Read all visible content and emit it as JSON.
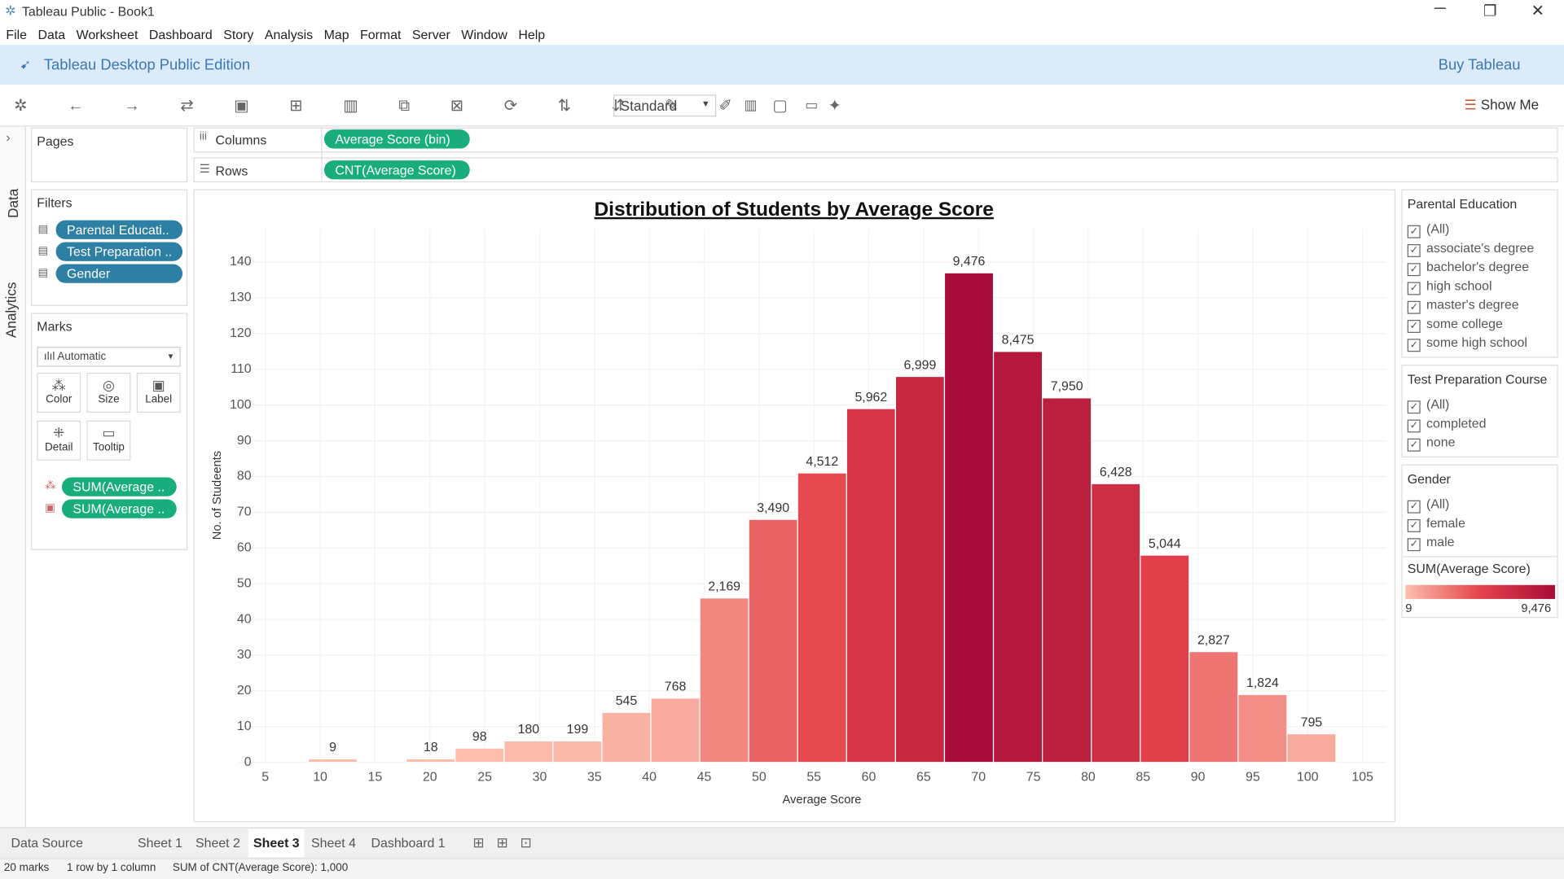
{
  "window": {
    "title": "Tableau Public - Book1"
  },
  "menu": [
    "File",
    "Data",
    "Worksheet",
    "Dashboard",
    "Story",
    "Analysis",
    "Map",
    "Format",
    "Server",
    "Window",
    "Help"
  ],
  "banner": {
    "edition": "Tableau Desktop Public Edition",
    "buy": "Buy Tableau"
  },
  "toolbar": {
    "fit": "Standard",
    "show_me": "Show Me"
  },
  "side_tabs": [
    "Data",
    "Analytics"
  ],
  "pages": {
    "title": "Pages"
  },
  "filters": {
    "title": "Filters",
    "pills": [
      "Parental Educati..",
      "Test Preparation ..",
      "Gender"
    ]
  },
  "marks": {
    "title": "Marks",
    "type": "Automatic",
    "cards": [
      "Color",
      "Size",
      "Label",
      "Detail",
      "Tooltip"
    ],
    "pills": [
      "SUM(Average ..",
      "SUM(Average .."
    ]
  },
  "shelves": {
    "columns_label": "Columns",
    "columns": "Average Score (bin)",
    "rows_label": "Rows",
    "rows": "CNT(Average Score)"
  },
  "chart_data": {
    "type": "histogram",
    "title": "Distribution of Students by Average Score",
    "x_label": "Average Score",
    "y_label": "No. of Studeents",
    "bins": [
      8.92,
      13.38,
      17.84,
      22.3,
      26.76,
      31.22,
      35.68,
      40.14,
      44.6,
      49.06,
      53.52,
      57.98,
      62.44,
      66.9,
      71.36,
      75.82,
      80.28,
      84.74,
      89.2,
      93.66,
      98.12,
      102.58
    ],
    "counts": [
      1,
      0,
      1,
      4,
      6,
      6,
      14,
      18,
      46,
      68,
      81,
      99,
      108,
      137,
      115,
      102,
      78,
      58,
      31,
      19,
      8
    ],
    "color_values": [
      9,
      null,
      18,
      98,
      180,
      199,
      545,
      768,
      2169,
      3490,
      4512,
      5962,
      6999,
      9476,
      8475,
      7950,
      6428,
      5044,
      2827,
      1824,
      795
    ],
    "color_labels": [
      "9",
      null,
      "18",
      "98",
      "180",
      "199",
      "545",
      "768",
      "2,169",
      "3,490",
      "4,512",
      "5,962",
      "6,999",
      "9,476",
      "8,475",
      "7,950",
      "6,428",
      "5,044",
      "2,827",
      "1,824",
      "795"
    ],
    "colors": [
      "#fcbfac",
      "#e5434b",
      "#a80c38"
    ],
    "color_legend_title": "SUM(Average Score)",
    "color_range": [
      9,
      {
        "value": 9476,
        "label": "9,476"
      }
    ],
    "xlim": [
      5,
      105
    ],
    "xticks": [
      5,
      10,
      15,
      20,
      25,
      30,
      35,
      40,
      45,
      50,
      55,
      60,
      65,
      70,
      75,
      80,
      85,
      90,
      95,
      100,
      105
    ],
    "ylim": [
      0,
      140
    ],
    "yticks": [
      0,
      10,
      20,
      30,
      40,
      50,
      60,
      70,
      80,
      90,
      100,
      110,
      120,
      130,
      140
    ],
    "grid": true
  },
  "filter_cards": [
    {
      "title": "Parental Education",
      "items": [
        "(All)",
        "associate's degree",
        "bachelor's degree",
        "high school",
        "master's degree",
        "some college",
        "some high school"
      ]
    },
    {
      "title": "Test Preparation Course",
      "items": [
        "(All)",
        "completed",
        "none"
      ]
    },
    {
      "title": "Gender",
      "items": [
        "(All)",
        "female",
        "male"
      ]
    }
  ],
  "sheet_tabs": [
    "Data Source",
    "Sheet 1",
    "Sheet 2",
    "Sheet 3",
    "Sheet 4",
    "Dashboard 1"
  ],
  "status": {
    "marks": "20 marks",
    "dims": "1 row by 1 column",
    "sum": "SUM of CNT(Average Score): 1,000"
  }
}
